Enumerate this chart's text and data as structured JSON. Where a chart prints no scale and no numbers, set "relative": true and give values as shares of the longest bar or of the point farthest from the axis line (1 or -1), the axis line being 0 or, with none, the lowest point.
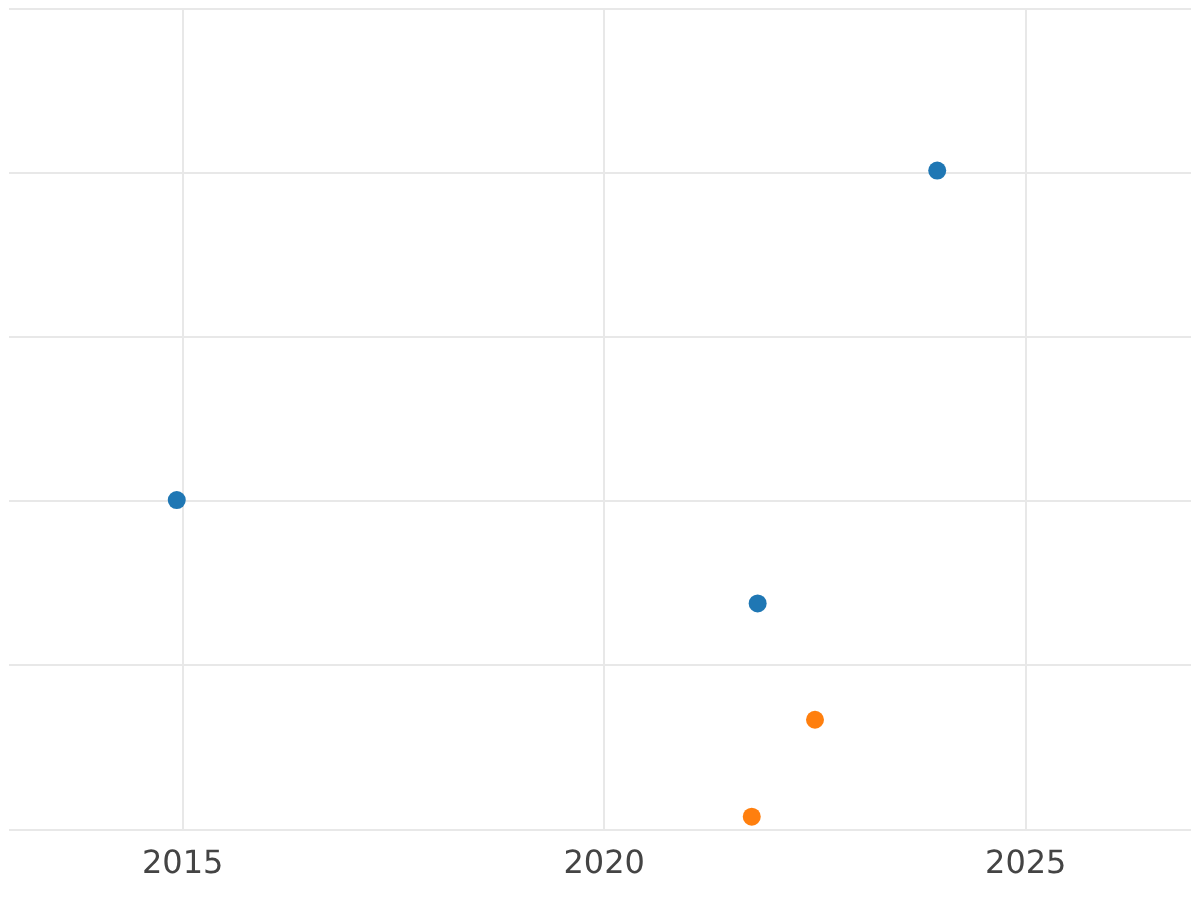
{
  "chart_data": {
    "type": "scatter",
    "relative": true,
    "xlim": [
      2012.94,
      2026.96
    ],
    "xticks": [
      2015,
      2020,
      2025
    ],
    "grid": true,
    "marker": "circle",
    "legend": false,
    "series": [
      {
        "color": "#1f77b4",
        "x": [
          2014.93,
          2021.82,
          2023.95
        ],
        "values": [
          0.49,
          0.33,
          1
        ]
      },
      {
        "color": "#ff7f0e",
        "x": [
          2022.5,
          2021.75
        ],
        "values": [
          0.15,
          0
        ]
      }
    ]
  }
}
